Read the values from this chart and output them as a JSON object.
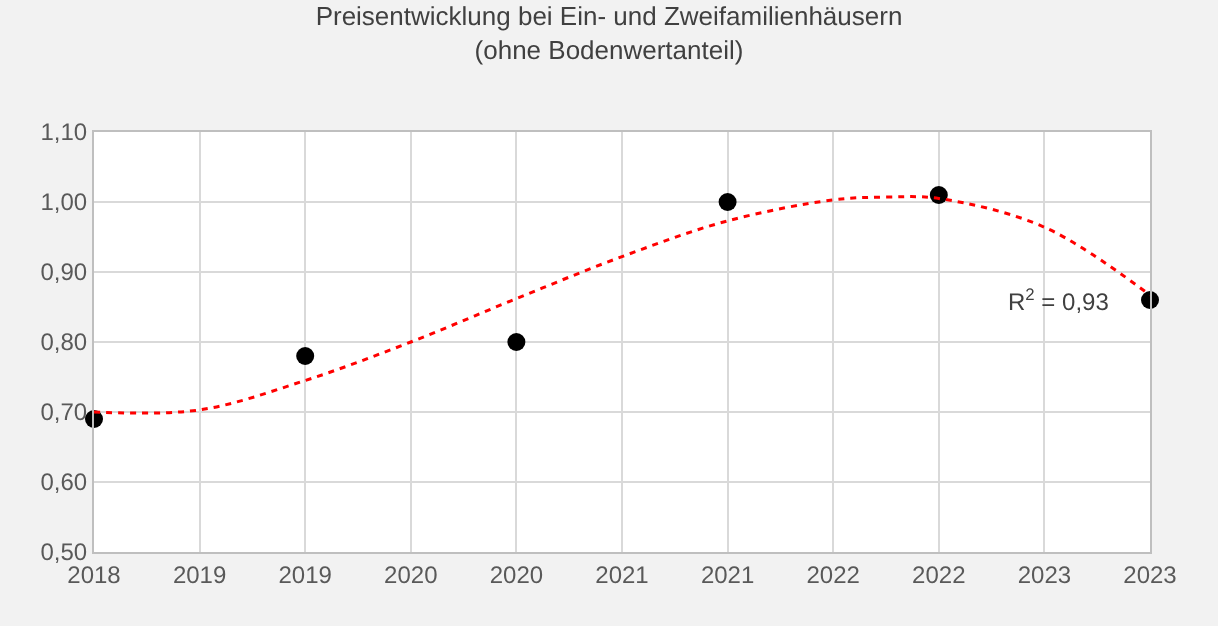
{
  "chart_data": {
    "type": "scatter",
    "title": "Preisentwicklung bei Ein- und Zweifamilienhäusern",
    "subtitle": "(ohne Bodenwertanteil)",
    "x": [
      2018,
      2019,
      2020,
      2021,
      2022,
      2023
    ],
    "series": [
      {
        "color": "#000000",
        "marker": "circle",
        "values": [
          0.69,
          0.78,
          0.8,
          1.0,
          1.01,
          0.86
        ]
      },
      {
        "type": "line",
        "color": "#ff0000",
        "line_style": "dotted",
        "marker": "none",
        "x": [
          2018,
          2018.5,
          2019,
          2019.5,
          2020,
          2020.5,
          2021,
          2021.5,
          2021.75,
          2022,
          2022.5,
          2023
        ],
        "values": [
          0.7,
          0.703,
          0.745,
          0.8,
          0.862,
          0.922,
          0.973,
          1.003,
          1.007,
          1.005,
          0.964,
          0.867
        ]
      }
    ],
    "annotations": [
      "R$^{2}$ = 0,93"
    ],
    "xlim": [
      2018,
      2023
    ],
    "xticks": [
      {
        "value": 2018,
        "label": "2018"
      },
      {
        "value": 2018.5,
        "label": "2019"
      },
      {
        "value": 2019,
        "label": "2019"
      },
      {
        "value": 2019.5,
        "label": "2020"
      },
      {
        "value": 2020,
        "label": "2020"
      },
      {
        "value": 2020.5,
        "label": "2021"
      },
      {
        "value": 2021,
        "label": "2021"
      },
      {
        "value": 2021.5,
        "label": "2022"
      },
      {
        "value": 2022,
        "label": "2022"
      },
      {
        "value": 2022.5,
        "label": "2023"
      },
      {
        "value": 2023,
        "label": "2023"
      }
    ],
    "ylim": [
      0.5,
      1.1
    ],
    "yticks": [
      {
        "value": 0.5,
        "label": "0,50"
      },
      {
        "value": 0.6,
        "label": "0,60"
      },
      {
        "value": 0.7,
        "label": "0,70"
      },
      {
        "value": 0.8,
        "label": "0,80"
      },
      {
        "value": 0.9,
        "label": "0,90"
      },
      {
        "value": 1.0,
        "label": "1,00"
      },
      {
        "value": 1.1,
        "label": "1,10"
      }
    ],
    "grid": true,
    "legend": false
  }
}
